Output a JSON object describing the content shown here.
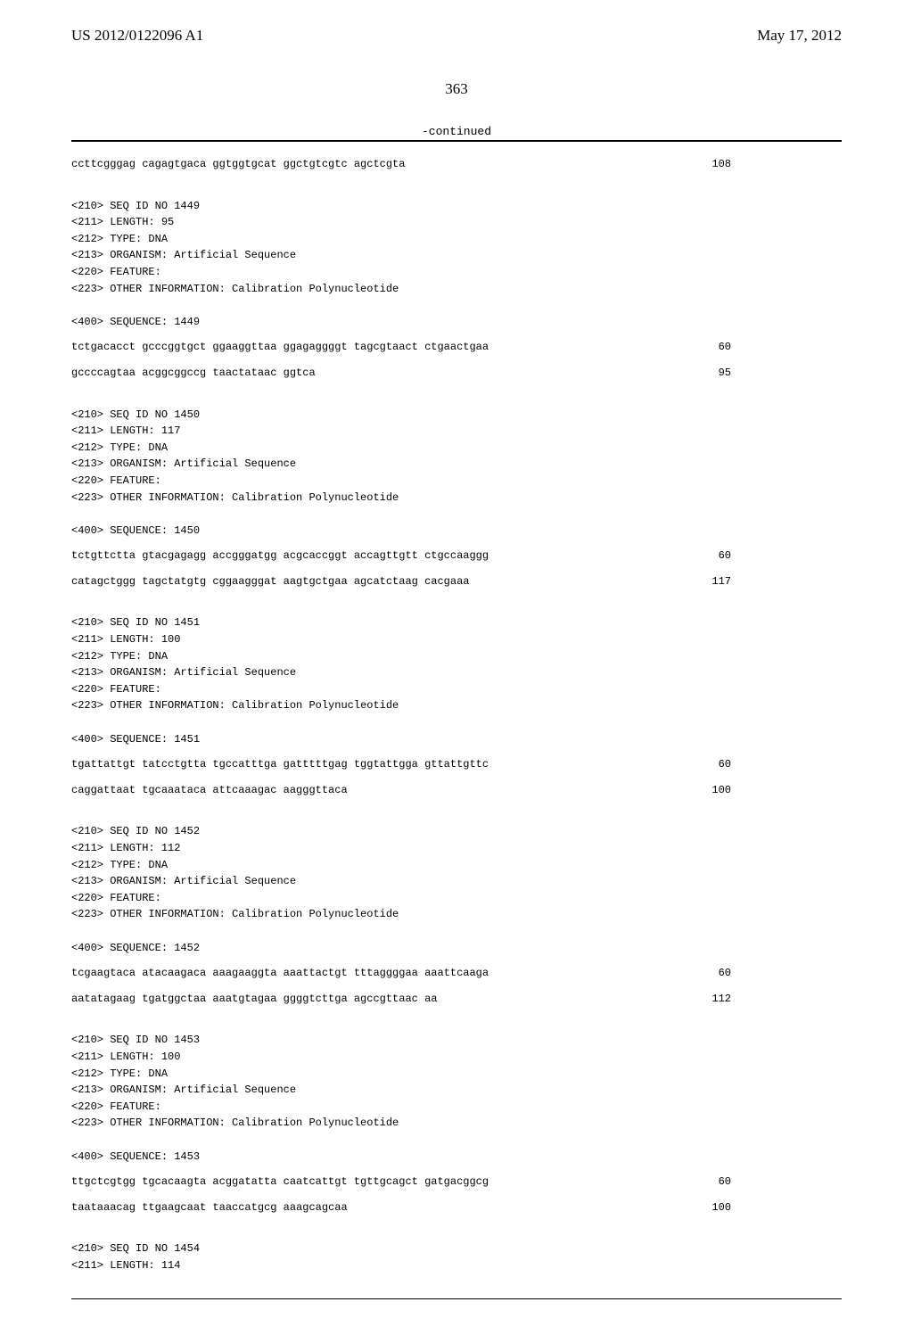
{
  "header": {
    "left": "US 2012/0122096 A1",
    "right": "May 17, 2012"
  },
  "page_number": "363",
  "continued": "-continued",
  "blocks": [
    {
      "meta": [],
      "seq": [
        {
          "text": "ccttcgggag cagagtgaca ggtggtgcat ggctgtcgtc agctcgta",
          "num": "108"
        }
      ]
    },
    {
      "meta": [
        "<210> SEQ ID NO 1449",
        "<211> LENGTH: 95",
        "<212> TYPE: DNA",
        "<213> ORGANISM: Artificial Sequence",
        "<220> FEATURE:",
        "<223> OTHER INFORMATION: Calibration Polynucleotide",
        "",
        "<400> SEQUENCE: 1449"
      ],
      "seq": [
        {
          "text": "tctgacacct gcccggtgct ggaaggttaa ggagaggggt tagcgtaact ctgaactgaa",
          "num": "60"
        },
        {
          "text": "gccccagtaa acggcggccg taactataac ggtca",
          "num": "95"
        }
      ]
    },
    {
      "meta": [
        "<210> SEQ ID NO 1450",
        "<211> LENGTH: 117",
        "<212> TYPE: DNA",
        "<213> ORGANISM: Artificial Sequence",
        "<220> FEATURE:",
        "<223> OTHER INFORMATION: Calibration Polynucleotide",
        "",
        "<400> SEQUENCE: 1450"
      ],
      "seq": [
        {
          "text": "tctgttctta gtacgagagg accgggatgg acgcaccggt accagttgtt ctgccaaggg",
          "num": "60"
        },
        {
          "text": "catagctggg tagctatgtg cggaagggat aagtgctgaa agcatctaag cacgaaa",
          "num": "117"
        }
      ]
    },
    {
      "meta": [
        "<210> SEQ ID NO 1451",
        "<211> LENGTH: 100",
        "<212> TYPE: DNA",
        "<213> ORGANISM: Artificial Sequence",
        "<220> FEATURE:",
        "<223> OTHER INFORMATION: Calibration Polynucleotide",
        "",
        "<400> SEQUENCE: 1451"
      ],
      "seq": [
        {
          "text": "tgattattgt tatcctgtta tgccatttga gatttttgag tggtattgga gttattgttc",
          "num": "60"
        },
        {
          "text": "caggattaat tgcaaataca attcaaagac aagggttaca",
          "num": "100"
        }
      ]
    },
    {
      "meta": [
        "<210> SEQ ID NO 1452",
        "<211> LENGTH: 112",
        "<212> TYPE: DNA",
        "<213> ORGANISM: Artificial Sequence",
        "<220> FEATURE:",
        "<223> OTHER INFORMATION: Calibration Polynucleotide",
        "",
        "<400> SEQUENCE: 1452"
      ],
      "seq": [
        {
          "text": "tcgaagtaca atacaagaca aaagaaggta aaattactgt tttaggggaa aaattcaaga",
          "num": "60"
        },
        {
          "text": "aatatagaag tgatggctaa aaatgtagaa ggggtcttga agccgttaac aa",
          "num": "112"
        }
      ]
    },
    {
      "meta": [
        "<210> SEQ ID NO 1453",
        "<211> LENGTH: 100",
        "<212> TYPE: DNA",
        "<213> ORGANISM: Artificial Sequence",
        "<220> FEATURE:",
        "<223> OTHER INFORMATION: Calibration Polynucleotide",
        "",
        "<400> SEQUENCE: 1453"
      ],
      "seq": [
        {
          "text": "ttgctcgtgg tgcacaagta acggatatta caatcattgt tgttgcagct gatgacggcg",
          "num": "60"
        },
        {
          "text": "taataaacag ttgaagcaat taaccatgcg aaagcagcaa",
          "num": "100"
        }
      ]
    },
    {
      "meta": [
        "<210> SEQ ID NO 1454",
        "<211> LENGTH: 114"
      ],
      "seq": []
    }
  ]
}
